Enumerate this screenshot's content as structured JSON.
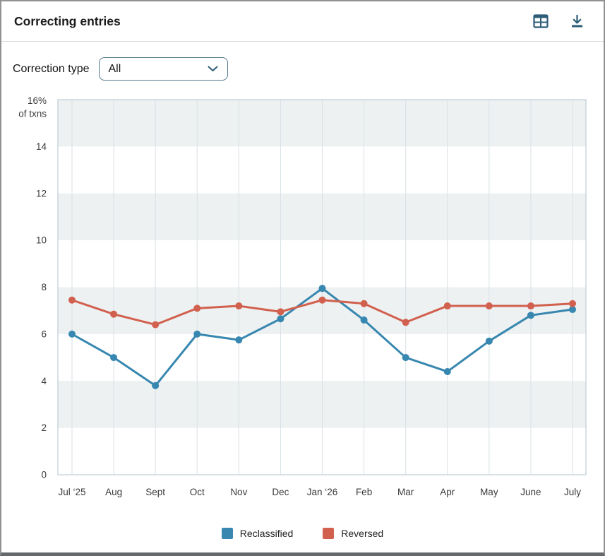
{
  "header": {
    "title": "Correcting entries",
    "icons": [
      {
        "name": "table-view",
        "icon": "table-icon"
      },
      {
        "name": "download",
        "icon": "download-icon"
      }
    ],
    "icon_color": "#2d5d77"
  },
  "filter": {
    "label": "Correction type",
    "selected": "All"
  },
  "chart_data": {
    "type": "line",
    "title": "Correcting entries",
    "y_top_label_lines": [
      "16%",
      "of txns"
    ],
    "categories": [
      "Jul ‘25",
      "Aug",
      "Sept",
      "Oct",
      "Nov",
      "Dec",
      "Jan ‘26",
      "Feb",
      "Mar",
      "Apr",
      "May",
      "June",
      "July"
    ],
    "series": [
      {
        "name": "Reclassified",
        "color": "#3787b0",
        "values": [
          6.0,
          5.0,
          3.8,
          6.0,
          5.75,
          6.65,
          7.95,
          6.6,
          5.0,
          4.4,
          5.7,
          6.8,
          7.05
        ]
      },
      {
        "name": "Reversed",
        "color": "#d2604e",
        "values": [
          7.45,
          6.85,
          6.4,
          7.1,
          7.2,
          6.95,
          7.45,
          7.3,
          6.5,
          7.2,
          7.2,
          7.2,
          7.3
        ]
      }
    ],
    "ylim": [
      0,
      16
    ],
    "yticks": [
      0,
      2,
      4,
      6,
      8,
      10,
      12,
      14
    ],
    "grid": true,
    "band_color": "#edf1f2",
    "gridline_color": "#d9e1e6",
    "axis_border_color": "#bfcdd6",
    "legend_position": "bottom"
  },
  "legend": {
    "items": [
      {
        "label": "Reclassified",
        "color": "#3787b0"
      },
      {
        "label": "Reversed",
        "color": "#d2604e"
      }
    ]
  }
}
